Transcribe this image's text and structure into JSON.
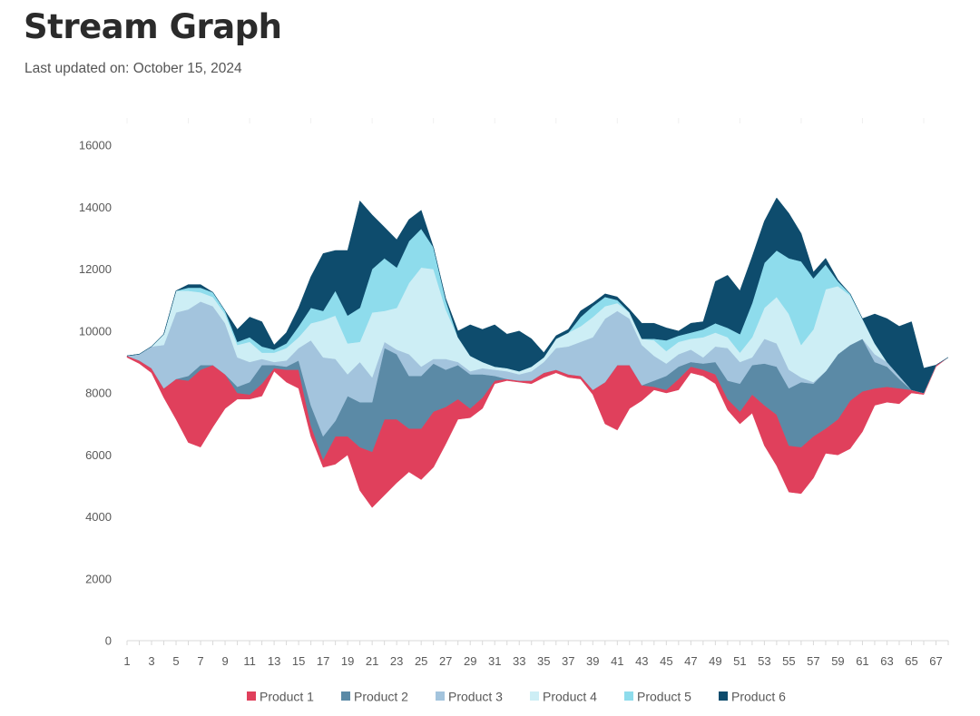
{
  "page": {
    "title": "Stream Graph",
    "subtitle": "Last updated on: October 15, 2024"
  },
  "chart_data": {
    "type": "area",
    "stacking": "streamgraph (silhouette)",
    "title": "",
    "xlabel": "",
    "ylabel": "",
    "ylim": [
      0,
      16000
    ],
    "yticks": [
      0,
      2000,
      4000,
      6000,
      8000,
      10000,
      12000,
      14000,
      16000
    ],
    "xlim": [
      1,
      68
    ],
    "xticks": [
      1,
      3,
      5,
      7,
      9,
      11,
      13,
      15,
      17,
      19,
      21,
      23,
      25,
      27,
      29,
      31,
      33,
      35,
      37,
      39,
      41,
      43,
      45,
      47,
      49,
      51,
      53,
      55,
      57,
      59,
      61,
      63,
      65,
      67
    ],
    "grid": false,
    "legend_position": "bottom",
    "baseline": [
      9150,
      8950,
      8650,
      7850,
      7150,
      6400,
      6250,
      6900,
      7500,
      7800,
      7800,
      7900,
      8700,
      8350,
      8150,
      6600,
      5600,
      5700,
      6000,
      4850,
      4300,
      4700,
      5100,
      5450,
      5200,
      5600,
      6350,
      7150,
      7200,
      7500,
      8300,
      8400,
      8350,
      8300,
      8500,
      8650,
      8500,
      8450,
      7950,
      7000,
      6800,
      7500,
      7750,
      8100,
      8000,
      8100,
      8650,
      8550,
      8300,
      7450,
      7000,
      7350,
      6300,
      5650,
      4800,
      4750,
      5250,
      6050,
      6000,
      6200,
      6750,
      7600,
      7700,
      7650,
      8000,
      7950,
      8850,
      9150
    ],
    "series": [
      {
        "name": "Product 1",
        "color": "#e0405c",
        "values": [
          50,
          100,
          150,
          300,
          1300,
          2000,
          2500,
          2000,
          1100,
          200,
          150,
          400,
          100,
          400,
          600,
          350,
          250,
          900,
          600,
          1400,
          1800,
          2450,
          2050,
          1400,
          1650,
          1800,
          1200,
          650,
          300,
          350,
          100,
          50,
          50,
          100,
          150,
          100,
          100,
          100,
          150,
          1350,
          2100,
          1400,
          500,
          100,
          100,
          350,
          200,
          200,
          300,
          350,
          400,
          600,
          1300,
          1650,
          1500,
          1500,
          1350,
          800,
          1150,
          1550,
          1300,
          550,
          500,
          500,
          100,
          50,
          50,
          0
        ]
      },
      {
        "name": "Product 2",
        "color": "#5b8aa6",
        "values": [
          0,
          0,
          0,
          0,
          0,
          150,
          150,
          0,
          0,
          200,
          400,
          600,
          100,
          100,
          300,
          650,
          750,
          500,
          1300,
          1450,
          1600,
          2300,
          2100,
          1700,
          1700,
          1550,
          1200,
          1100,
          1100,
          750,
          150,
          0,
          0,
          0,
          0,
          0,
          0,
          0,
          0,
          0,
          0,
          0,
          0,
          200,
          450,
          400,
          150,
          200,
          400,
          600,
          900,
          950,
          1350,
          1550,
          1850,
          2100,
          1700,
          1850,
          2100,
          1800,
          1700,
          850,
          650,
          300,
          0,
          0,
          0,
          0
        ]
      },
      {
        "name": "Product 3",
        "color": "#a3c4dd",
        "values": [
          0,
          200,
          700,
          1400,
          2150,
          2150,
          2050,
          1900,
          1650,
          950,
          650,
          200,
          100,
          200,
          400,
          2100,
          2550,
          2000,
          700,
          1300,
          800,
          200,
          150,
          700,
          300,
          150,
          350,
          100,
          100,
          200,
          200,
          250,
          200,
          300,
          350,
          700,
          900,
          1100,
          1700,
          2050,
          1750,
          1500,
          1300,
          800,
          400,
          400,
          400,
          200,
          500,
          1050,
          700,
          250,
          800,
          750,
          600,
          150,
          50,
          0,
          0,
          0,
          0,
          250,
          150,
          100,
          0,
          0,
          0,
          0
        ]
      },
      {
        "name": "Product 4",
        "color": "#cdeef5",
        "values": [
          0,
          0,
          0,
          350,
          700,
          600,
          300,
          300,
          300,
          400,
          650,
          200,
          300,
          400,
          350,
          550,
          1200,
          1400,
          1000,
          650,
          2100,
          1000,
          1350,
          2300,
          3200,
          2900,
          1600,
          800,
          500,
          200,
          100,
          100,
          100,
          150,
          150,
          300,
          450,
          500,
          650,
          400,
          250,
          200,
          200,
          500,
          400,
          400,
          350,
          650,
          450,
          350,
          300,
          650,
          1000,
          1500,
          1800,
          1050,
          1700,
          2650,
          2200,
          1600,
          650,
          350,
          0,
          0,
          0,
          0,
          0,
          0
        ]
      },
      {
        "name": "Product 5",
        "color": "#8edcec",
        "values": [
          0,
          0,
          0,
          0,
          0,
          100,
          150,
          150,
          100,
          100,
          150,
          200,
          100,
          150,
          350,
          500,
          300,
          800,
          900,
          1100,
          1400,
          1700,
          1300,
          1350,
          1250,
          700,
          300,
          0,
          0,
          0,
          0,
          0,
          0,
          0,
          0,
          0,
          0,
          300,
          350,
          300,
          100,
          0,
          0,
          50,
          350,
          200,
          200,
          250,
          300,
          300,
          600,
          1100,
          1450,
          1500,
          1800,
          2700,
          1650,
          800,
          150,
          50,
          0,
          0,
          0,
          0,
          0,
          0,
          0,
          0
        ]
      },
      {
        "name": "Product 6",
        "color": "#0e4c6d",
        "values": [
          0,
          0,
          0,
          0,
          0,
          100,
          100,
          0,
          0,
          400,
          650,
          800,
          150,
          350,
          600,
          1000,
          1850,
          1300,
          2100,
          3450,
          1750,
          1000,
          900,
          700,
          600,
          0,
          50,
          200,
          1000,
          1050,
          1350,
          1100,
          1300,
          900,
          150,
          100,
          100,
          200,
          100,
          100,
          100,
          100,
          500,
          500,
          400,
          150,
          300,
          250,
          1350,
          1700,
          1400,
          1500,
          1350,
          1700,
          1450,
          900,
          200,
          200,
          50,
          0,
          0,
          950,
          1400,
          1600,
          2200,
          800,
          0,
          0
        ]
      }
    ]
  }
}
